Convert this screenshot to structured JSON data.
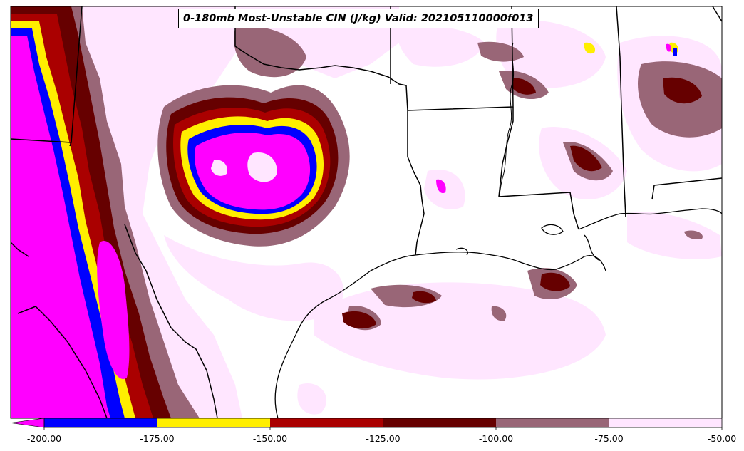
{
  "title": "0-180mb Most-Unstable CIN (J/kg) Valid: 202105110000f013",
  "colors": {
    "lt200": "#ff00ff",
    "c200_175": "#0000ff",
    "c175_150": "#ffee00",
    "c150_125": "#aa0000",
    "c125_100": "#660000",
    "c100_75": "#996677",
    "c75_50": "#ffe6ff",
    "land": "#ffffff",
    "border": "#000000"
  },
  "colorbar": {
    "labels": [
      "-200.00",
      "-175.00",
      "-150.00",
      "-125.00",
      "-100.00",
      "-75.00",
      "-50.00"
    ],
    "bins": [
      {
        "color": "#0000ff"
      },
      {
        "color": "#ffee00"
      },
      {
        "color": "#aa0000"
      },
      {
        "color": "#660000"
      },
      {
        "color": "#996677"
      },
      {
        "color": "#ffe6ff"
      }
    ],
    "extend_min_color": "#ff00ff"
  }
}
